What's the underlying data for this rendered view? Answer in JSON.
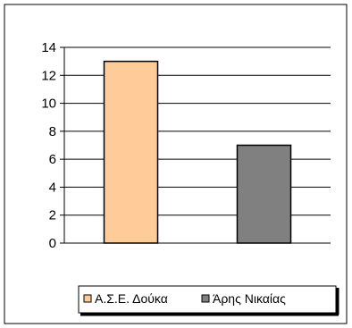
{
  "chart_data": {
    "type": "bar",
    "categories": [
      "Α.Σ.Ε. Δούκα",
      "Άρης Νικαίας"
    ],
    "values": [
      13,
      7
    ],
    "ylim": [
      0,
      14
    ],
    "yticks": [
      "0",
      "2",
      "4",
      "6",
      "8",
      "10",
      "12",
      "14"
    ],
    "grid": true,
    "legend_position": "bottom",
    "series_colors": [
      "#FFCC99",
      "#808080"
    ],
    "series": [
      {
        "name": "Α.Σ.Ε. Δούκα",
        "value": 13,
        "color": "#FFCC99"
      },
      {
        "name": "Άρης Νικαίας",
        "value": 7,
        "color": "#808080"
      }
    ]
  }
}
